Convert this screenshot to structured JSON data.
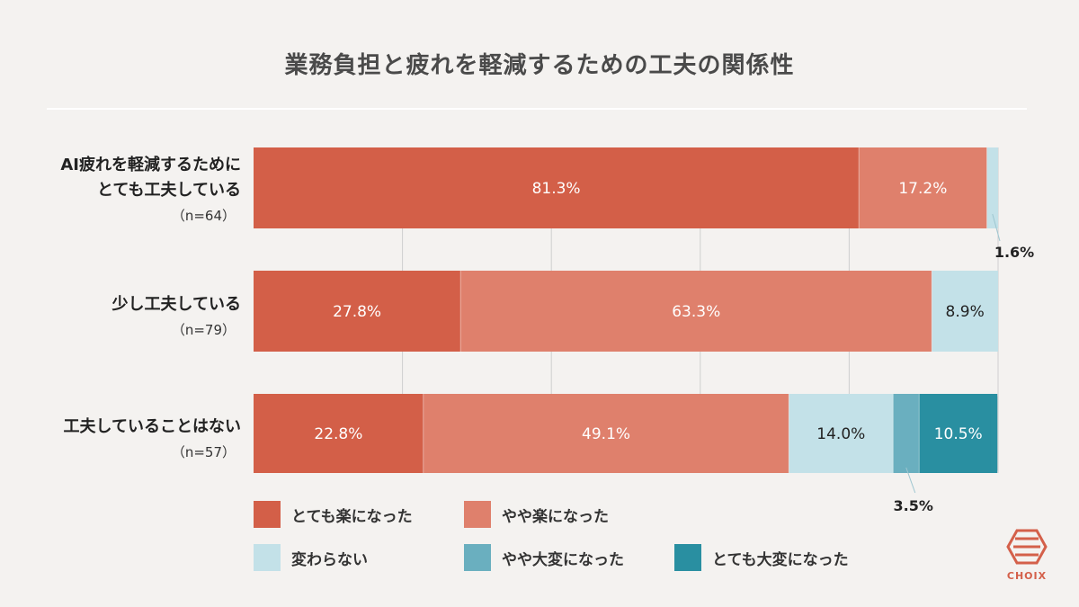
{
  "chart_data": {
    "type": "bar",
    "orientation": "horizontal",
    "stacked": true,
    "title": "業務負担と疲れを軽減するための工夫の関係性",
    "xlim": [
      0,
      100
    ],
    "categories": [
      {
        "lines": [
          "AI疲れを軽減するために",
          "とても工夫している"
        ],
        "n": "（n=64）"
      },
      {
        "lines": [
          "少し工夫している"
        ],
        "n": "（n=79）"
      },
      {
        "lines": [
          "工夫していることはない"
        ],
        "n": "（n=57）"
      }
    ],
    "series": [
      {
        "name": "とても楽になった",
        "color": "#d35f48",
        "values": [
          81.3,
          27.8,
          22.8
        ],
        "labels": [
          "81.3%",
          "27.8%",
          "22.8%"
        ]
      },
      {
        "name": "やや楽になった",
        "color": "#df806c",
        "values": [
          17.2,
          63.3,
          49.1
        ],
        "labels": [
          "17.2%",
          "63.3%",
          "49.1%"
        ]
      },
      {
        "name": "変わらない",
        "color": "#c3e1e8",
        "values": [
          1.6,
          8.9,
          14.0
        ],
        "labels": [
          "1.6%",
          "8.9%",
          "14.0%"
        ]
      },
      {
        "name": "やや大変になった",
        "color": "#6aafbf",
        "values": [
          0,
          0,
          3.5
        ],
        "labels": [
          "",
          "",
          "3.5%"
        ]
      },
      {
        "name": "とても大変になった",
        "color": "#298fa1",
        "values": [
          0,
          0,
          10.5
        ],
        "labels": [
          "",
          "",
          "10.5%"
        ]
      }
    ],
    "label_colors": {
      "light_bg_text": "#222222",
      "dark_bg_text": "#ffffff"
    },
    "gridline_values": [
      20,
      40,
      60,
      80,
      100
    ]
  },
  "logo": {
    "text": "CHOIX"
  }
}
